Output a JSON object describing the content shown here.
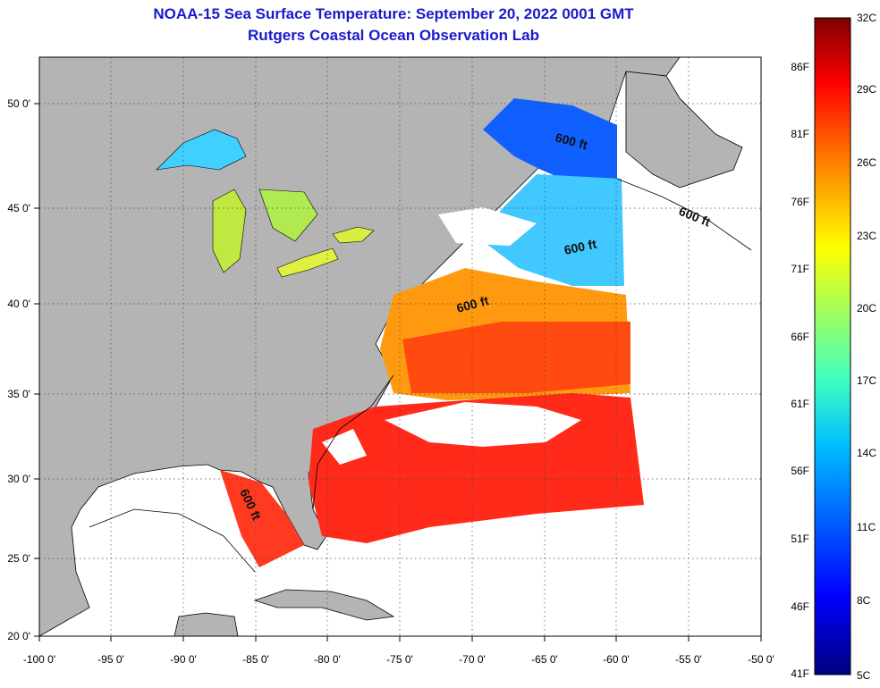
{
  "title": "NOAA-15 Sea Surface Temperature:  September 20, 2022 0001 GMT",
  "subtitle": "Rutgers Coastal Ocean Observation Lab",
  "map": {
    "lon_ticks": [
      "-100 0'",
      "-95 0'",
      "-90 0'",
      "-85 0'",
      "-80 0'",
      "-75 0'",
      "-70 0'",
      "-65 0'",
      "-60 0'",
      "-55 0'",
      "-50 0'"
    ],
    "lat_ticks": [
      "50 0'",
      "45 0'",
      "40 0'",
      "35 0'",
      "30 0'",
      "25 0'",
      "20 0'"
    ],
    "isobath_labels": [
      "600 ft",
      "600 ft",
      "600 ft",
      "600 ft",
      "600 ft"
    ],
    "colors": {
      "land": "#b4b4b4",
      "ocean_nodata": "#ffffff",
      "cloud": "#ffffff"
    }
  },
  "colorbar": {
    "celsius_labels": [
      "32C",
      "29C",
      "26C",
      "23C",
      "20C",
      "17C",
      "14C",
      "11C",
      "8C",
      "5C"
    ],
    "fahrenheit_labels": [
      "86F",
      "81F",
      "76F",
      "71F",
      "66F",
      "61F",
      "56F",
      "51F",
      "46F",
      "41F"
    ],
    "colors": [
      "#7f0000",
      "#ff0000",
      "#ff8000",
      "#ffff00",
      "#80ff80",
      "#00ffff",
      "#0080ff",
      "#0000ff",
      "#00008f"
    ]
  }
}
